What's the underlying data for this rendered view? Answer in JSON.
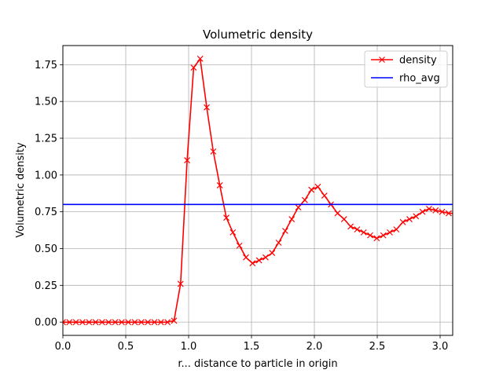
{
  "chart_data": {
    "type": "line",
    "title": "Volumetric density",
    "xlabel": "r... distance to particle in origin",
    "ylabel": "Volumetric density",
    "xlim": [
      0.0,
      3.1
    ],
    "ylim": [
      -0.09,
      1.88
    ],
    "grid": true,
    "legend_position": "top-right",
    "xticks": [
      0.0,
      0.5,
      1.0,
      1.5,
      2.0,
      2.5,
      3.0
    ],
    "xtick_labels": [
      "0.0",
      "0.5",
      "1.0",
      "1.5",
      "2.0",
      "2.5",
      "3.0"
    ],
    "yticks": [
      0.0,
      0.25,
      0.5,
      0.75,
      1.0,
      1.25,
      1.5,
      1.75
    ],
    "ytick_labels": [
      "0.00",
      "0.25",
      "0.50",
      "0.75",
      "1.00",
      "1.25",
      "1.50",
      "1.75"
    ],
    "series": [
      {
        "name": "density",
        "color": "#ff0000",
        "marker": "x",
        "x": [
          0.0,
          0.052,
          0.104,
          0.156,
          0.208,
          0.26,
          0.312,
          0.364,
          0.416,
          0.468,
          0.52,
          0.572,
          0.624,
          0.676,
          0.728,
          0.78,
          0.832,
          0.884,
          0.936,
          0.988,
          1.04,
          1.092,
          1.144,
          1.196,
          1.248,
          1.3,
          1.352,
          1.404,
          1.456,
          1.508,
          1.56,
          1.612,
          1.664,
          1.716,
          1.768,
          1.82,
          1.872,
          1.924,
          1.976,
          2.028,
          2.08,
          2.132,
          2.184,
          2.236,
          2.288,
          2.34,
          2.392,
          2.444,
          2.496,
          2.548,
          2.6,
          2.652,
          2.704,
          2.756,
          2.808,
          2.86,
          2.912,
          2.964,
          3.016,
          3.068,
          3.12
        ],
        "values": [
          0.0,
          0.0,
          0.0,
          0.0,
          0.0,
          0.0,
          0.0,
          0.0,
          0.0,
          0.0,
          0.0,
          0.0,
          0.0,
          0.0,
          0.0,
          0.0,
          0.0,
          0.01,
          0.26,
          1.1,
          1.73,
          1.79,
          1.46,
          1.16,
          0.93,
          0.71,
          0.61,
          0.52,
          0.44,
          0.4,
          0.42,
          0.44,
          0.47,
          0.54,
          0.62,
          0.7,
          0.78,
          0.83,
          0.9,
          0.92,
          0.86,
          0.8,
          0.74,
          0.7,
          0.65,
          0.63,
          0.61,
          0.59,
          0.57,
          0.59,
          0.61,
          0.63,
          0.68,
          0.7,
          0.72,
          0.75,
          0.77,
          0.76,
          0.75,
          0.74,
          0.74
        ]
      },
      {
        "name": "rho_avg",
        "color": "#0000ff",
        "marker": "none",
        "x": [
          0.0,
          3.1
        ],
        "values": [
          0.8,
          0.8
        ]
      }
    ]
  }
}
